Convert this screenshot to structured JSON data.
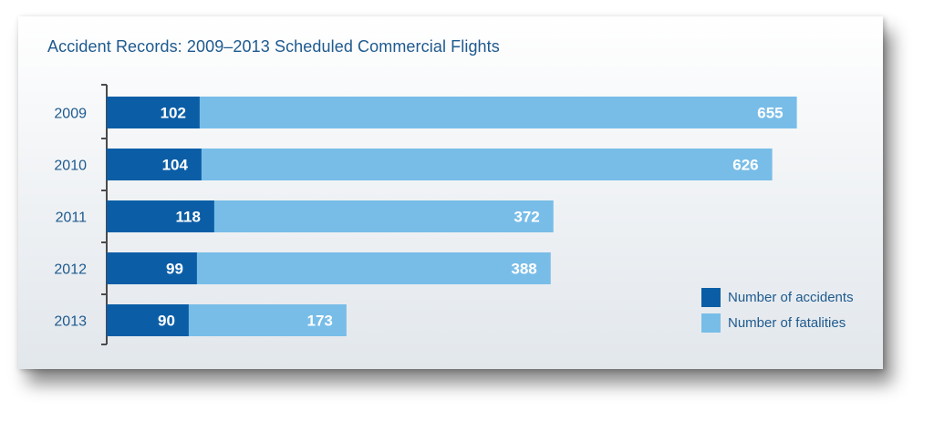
{
  "title": "Accident Records: 2009–2013 Scheduled Commercial Flights",
  "legend": {
    "accidents": "Number of accidents",
    "fatalities": "Number of fatalities"
  },
  "colors": {
    "accidents": "#0b5ea6",
    "fatalities": "#78bde8",
    "text": "#1e5a8e",
    "axis": "#4a4a4a"
  },
  "chart_data": {
    "type": "bar",
    "orientation": "horizontal",
    "stacked": true,
    "title": "Accident Records: 2009–2013 Scheduled Commercial Flights",
    "categories": [
      "2009",
      "2010",
      "2011",
      "2012",
      "2013"
    ],
    "series": [
      {
        "name": "Number of accidents",
        "values": [
          102,
          104,
          118,
          99,
          90
        ]
      },
      {
        "name": "Number of fatalities",
        "values": [
          655,
          626,
          372,
          388,
          173
        ]
      }
    ],
    "legend": "bottom-right",
    "grid": false
  }
}
